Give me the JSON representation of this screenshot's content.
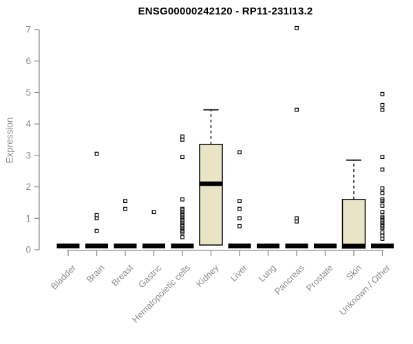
{
  "page": {
    "background": "#ffffff"
  },
  "chart_data": {
    "type": "boxplot",
    "title": "ENSG00000242120 - RP11-231I13.2",
    "ylabel": "Expression",
    "xlabel": "",
    "ylim": [
      0,
      7.1
    ],
    "yticks": [
      0,
      1,
      2,
      3,
      4,
      5,
      6,
      7
    ],
    "grid": false,
    "legend": false,
    "categories": [
      "Bladder",
      "Brain",
      "Breast",
      "Gastric",
      "Hematopoietic cells",
      "Kidney",
      "Liver",
      "Lung",
      "Pancreas",
      "Prostate",
      "Skin",
      "Unknown / Other"
    ],
    "boxes": [
      {
        "category": "Bladder",
        "median": 0.12,
        "q1": 0.05,
        "q3": 0.2,
        "whisker_low": 0.05,
        "whisker_high": 0.2,
        "outliers": []
      },
      {
        "category": "Brain",
        "median": 0.12,
        "q1": 0.05,
        "q3": 0.2,
        "whisker_low": 0.05,
        "whisker_high": 0.2,
        "outliers": [
          3.05,
          1.1,
          1.0,
          0.6
        ]
      },
      {
        "category": "Breast",
        "median": 0.12,
        "q1": 0.05,
        "q3": 0.2,
        "whisker_low": 0.05,
        "whisker_high": 0.2,
        "outliers": [
          1.55,
          1.3
        ]
      },
      {
        "category": "Gastric",
        "median": 0.12,
        "q1": 0.05,
        "q3": 0.2,
        "whisker_low": 0.05,
        "whisker_high": 0.2,
        "outliers": [
          1.2
        ]
      },
      {
        "category": "Hematopoietic cells",
        "median": 0.12,
        "q1": 0.05,
        "q3": 0.2,
        "whisker_low": 0.05,
        "whisker_high": 0.2,
        "outliers": [
          3.6,
          3.5,
          2.95,
          1.6,
          1.3,
          1.25,
          1.2,
          1.15,
          1.1,
          1.05,
          1.0,
          0.95,
          0.9,
          0.85,
          0.8,
          0.75,
          0.7,
          0.65,
          0.6,
          0.55,
          0.4
        ]
      },
      {
        "category": "Kidney",
        "median": 2.1,
        "q1": 0.15,
        "q3": 3.35,
        "whisker_low": 0.15,
        "whisker_high": 4.45,
        "outliers": []
      },
      {
        "category": "Liver",
        "median": 0.12,
        "q1": 0.05,
        "q3": 0.2,
        "whisker_low": 0.05,
        "whisker_high": 0.2,
        "outliers": [
          3.1,
          1.55,
          1.3,
          1.0,
          0.75
        ]
      },
      {
        "category": "Lung",
        "median": 0.12,
        "q1": 0.05,
        "q3": 0.2,
        "whisker_low": 0.05,
        "whisker_high": 0.2,
        "outliers": []
      },
      {
        "category": "Pancreas",
        "median": 0.12,
        "q1": 0.05,
        "q3": 0.2,
        "whisker_low": 0.05,
        "whisker_high": 0.2,
        "outliers": [
          7.05,
          4.45,
          1.0,
          0.9
        ]
      },
      {
        "category": "Prostate",
        "median": 0.12,
        "q1": 0.05,
        "q3": 0.2,
        "whisker_low": 0.05,
        "whisker_high": 0.2,
        "outliers": []
      },
      {
        "category": "Skin",
        "median": 0.12,
        "q1": 0.05,
        "q3": 1.6,
        "whisker_low": 0.05,
        "whisker_high": 2.85,
        "outliers": []
      },
      {
        "category": "Unknown / Other",
        "median": 0.12,
        "q1": 0.05,
        "q3": 0.2,
        "whisker_low": 0.05,
        "whisker_high": 0.2,
        "outliers": [
          4.95,
          4.6,
          4.45,
          2.95,
          2.55,
          1.95,
          1.8,
          1.6,
          1.55,
          1.4,
          1.2,
          1.05,
          1.0,
          0.95,
          0.9,
          0.85,
          0.8,
          0.75,
          0.7,
          0.55,
          0.45,
          0.35
        ]
      }
    ],
    "colors": {
      "box_fill": "#e9e4c5",
      "box_stroke": "#000000",
      "median": "#000000",
      "whisker": "#000000",
      "outlier": "#000000",
      "axis": "#8c8c8c",
      "tick_label": "#8c8c8c",
      "title": "#000000",
      "background": "#ffffff"
    }
  }
}
